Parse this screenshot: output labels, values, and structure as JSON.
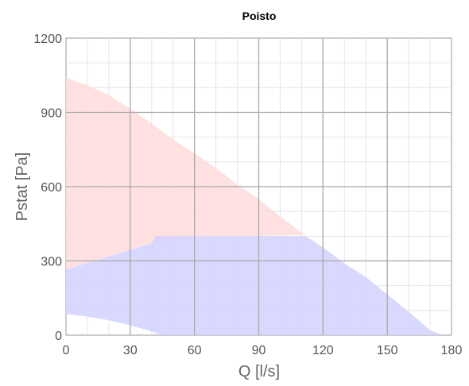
{
  "chart_data": {
    "type": "area",
    "title": "Poisto",
    "xlabel": "Q [l/s]",
    "ylabel": "Pstat [Pa]",
    "xlim": [
      0,
      180
    ],
    "ylim": [
      0,
      1200
    ],
    "x_ticks": [
      "0",
      "30",
      "60",
      "90",
      "120",
      "150",
      "180"
    ],
    "y_ticks": [
      "0",
      "300",
      "600",
      "900",
      "1200"
    ],
    "grid": "on",
    "series": [
      {
        "color": "#ffdcdc",
        "upper": [
          [
            0,
            1040
          ],
          [
            10,
            1010
          ],
          [
            20,
            970
          ],
          [
            30,
            915
          ],
          [
            40,
            855
          ],
          [
            50,
            790
          ],
          [
            60,
            735
          ],
          [
            70,
            675
          ],
          [
            80,
            610
          ],
          [
            90,
            550
          ],
          [
            100,
            480
          ],
          [
            110,
            415
          ],
          [
            112,
            405
          ]
        ],
        "lower": [
          [
            0,
            265
          ],
          [
            10,
            292
          ],
          [
            20,
            318
          ],
          [
            30,
            345
          ],
          [
            40,
            370
          ],
          [
            50,
            385
          ],
          [
            60,
            392
          ],
          [
            70,
            397
          ],
          [
            80,
            400
          ],
          [
            90,
            402
          ],
          [
            100,
            403
          ],
          [
            112,
            405
          ]
        ]
      },
      {
        "color": "#d2d2ff",
        "upper": [
          [
            0,
            265
          ],
          [
            10,
            292
          ],
          [
            20,
            318
          ],
          [
            30,
            345
          ],
          [
            40,
            370
          ],
          [
            42,
            400
          ],
          [
            112,
            400
          ],
          [
            120,
            355
          ],
          [
            130,
            290
          ],
          [
            140,
            235
          ],
          [
            150,
            165
          ],
          [
            160,
            95
          ],
          [
            170,
            20
          ],
          [
            176,
            0
          ]
        ],
        "lower": [
          [
            0,
            85
          ],
          [
            10,
            75
          ],
          [
            20,
            60
          ],
          [
            30,
            40
          ],
          [
            40,
            15
          ],
          [
            45,
            0
          ],
          [
            176,
            0
          ]
        ]
      }
    ]
  }
}
